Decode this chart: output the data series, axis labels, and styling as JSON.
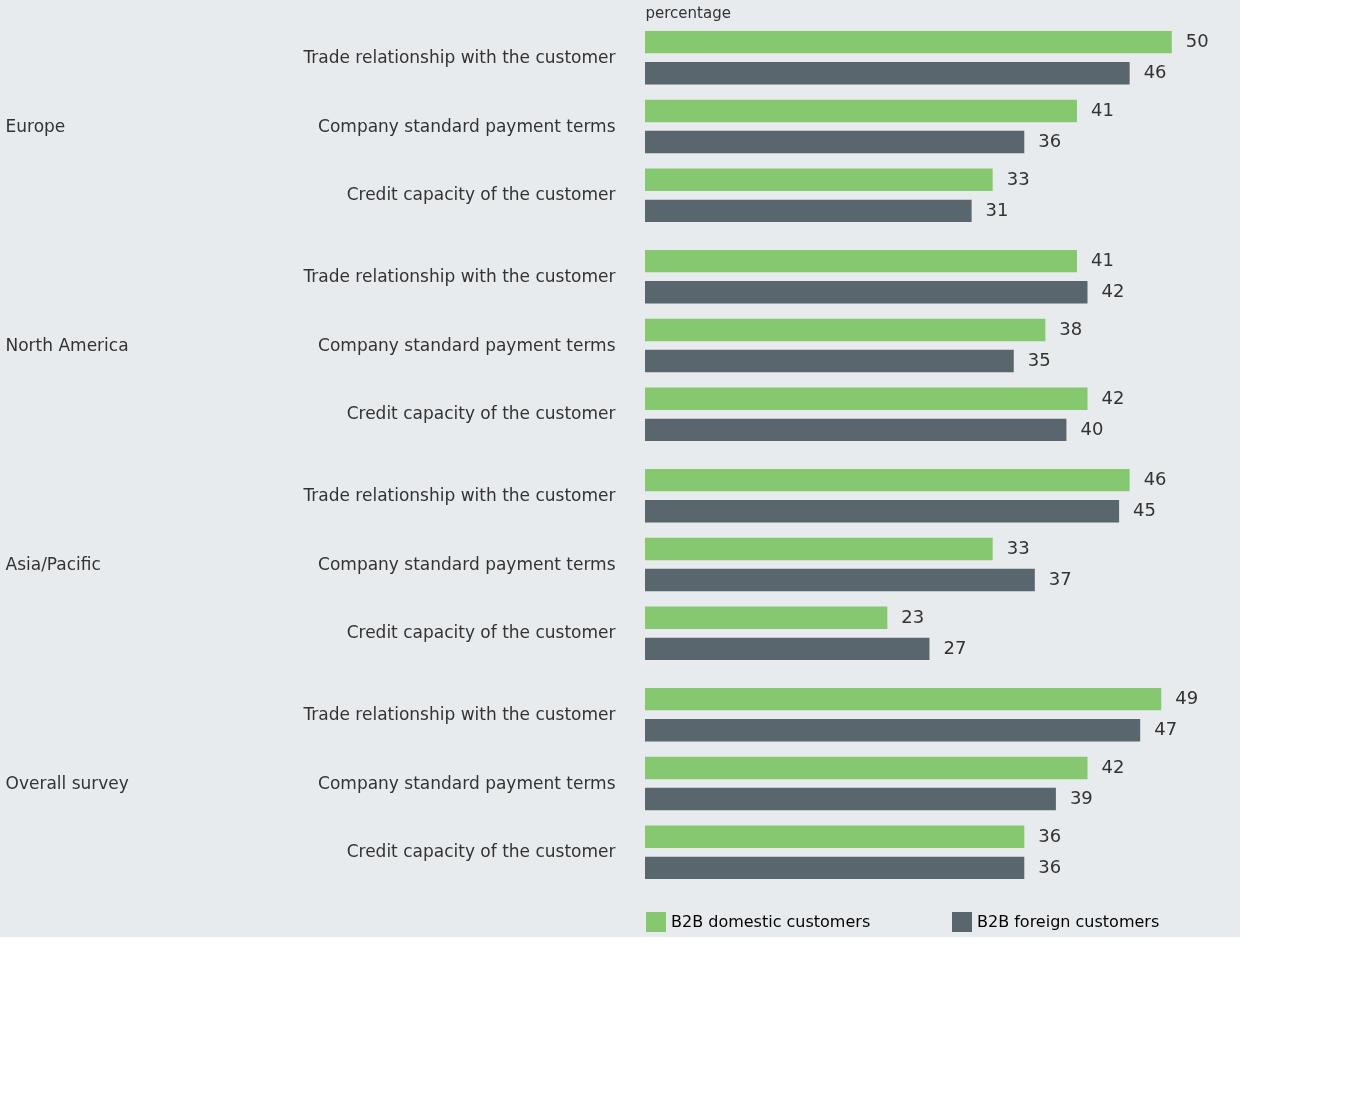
{
  "chart_data": [
    {
      "type": "bar",
      "orientation": "horizontal",
      "ylabel": "Europe",
      "xlabel": "percentage",
      "tick_labels": "y",
      "data_labels": true,
      "legend": "bottom",
      "categories": [
        "Trade relationship with the customer",
        "Company standard payment terms",
        "Credit capacity of the customer"
      ],
      "series": [
        {
          "name": "B2B domestic customers",
          "color": "#86c86f",
          "values": [
            50,
            41,
            33
          ]
        },
        {
          "name": "B2B foreign customers",
          "color": "#59666e",
          "values": [
            46,
            36,
            31
          ]
        }
      ]
    },
    {
      "type": "bar",
      "orientation": "horizontal",
      "ylabel": "North America",
      "tick_labels": "y",
      "data_labels": true,
      "legend": false,
      "categories": [
        "Trade relationship with the customer",
        "Company standard payment terms",
        "Credit capacity of the customer"
      ],
      "series": [
        {
          "color": "#86c86f",
          "values": [
            41,
            38,
            42
          ]
        },
        {
          "color": "#59666e",
          "values": [
            42,
            35,
            40
          ]
        }
      ]
    },
    {
      "type": "bar",
      "orientation": "horizontal",
      "ylabel": "Asia/Pacific",
      "tick_labels": "y",
      "data_labels": true,
      "legend": false,
      "categories": [
        "Trade relationship with the customer",
        "Company standard payment terms",
        "Credit capacity of the customer"
      ],
      "series": [
        {
          "color": "#86c86f",
          "values": [
            46,
            33,
            23
          ]
        },
        {
          "color": "#59666e",
          "values": [
            45,
            37,
            27
          ]
        }
      ]
    },
    {
      "type": "bar",
      "orientation": "horizontal",
      "ylabel": "Overall survey",
      "tick_labels": "y",
      "data_labels": true,
      "legend": false,
      "categories": [
        "Trade relationship with the customer",
        "Company standard payment terms",
        "Credit capacity of the customer"
      ],
      "series": [
        {
          "color": "#86c86f",
          "values": [
            49,
            42,
            36
          ]
        },
        {
          "color": "#59666e",
          "values": [
            47,
            39,
            36
          ]
        }
      ]
    }
  ]
}
